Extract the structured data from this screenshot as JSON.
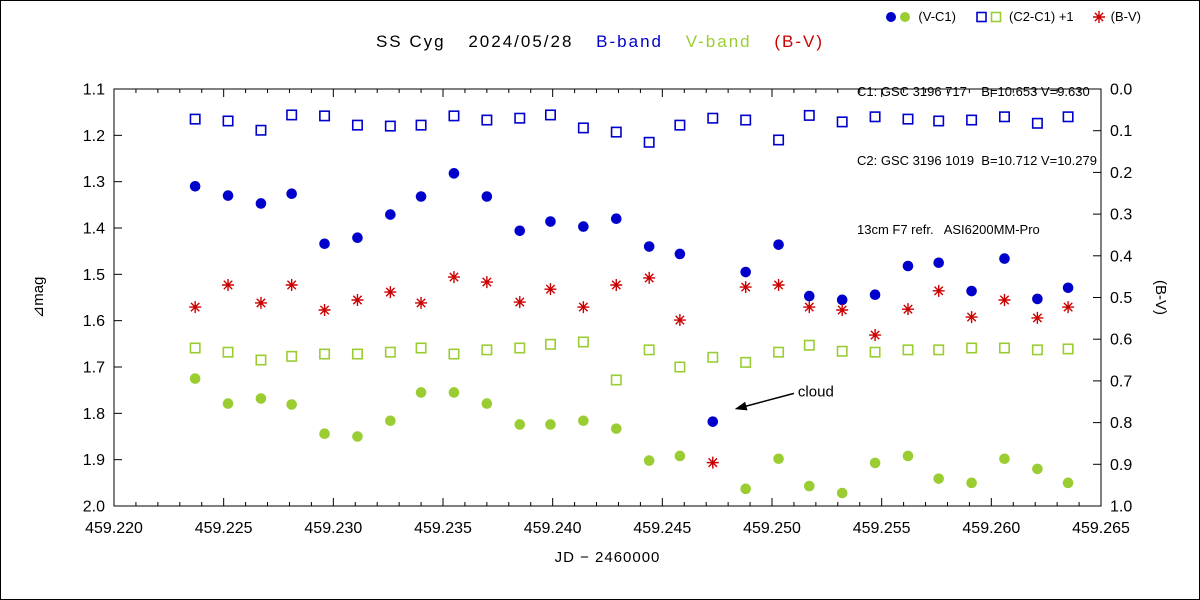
{
  "header": {
    "star": "SS Cyg",
    "date": "2024/05/28",
    "b_band_label": "B-band",
    "v_band_label": "V-band",
    "bv_label": "(B-V)",
    "info_lines": [
      "C1: GSC 3196 717    B=10.653 V=9.630",
      "C2: GSC 3196 1019  B=10.712 V=10.279",
      "13cm F7 refr.   ASI6200MM-Pro"
    ]
  },
  "legend": {
    "vc1_label": "(V-C1)",
    "c2c1_label": "(C2-C1) +1",
    "bv_label": "(B-V)"
  },
  "colors": {
    "b": "#0000cc",
    "v": "#9acd32",
    "bv": "#cc0000",
    "axis": "#000000"
  },
  "chart_data": {
    "type": "scatter",
    "title": "SS Cyg 2024/05/28 B-band V-band (B-V)",
    "xlabel": "JD − 2460000",
    "ylabel_left": "⊿mag",
    "ylabel_right": "(B-V)",
    "grid": false,
    "x_axis": {
      "min": 459.22,
      "max": 459.265,
      "major_step": 0.005,
      "minor_step": 0.001,
      "tick_labels": [
        "459.220",
        "459.225",
        "459.230",
        "459.235",
        "459.240",
        "459.245",
        "459.250",
        "459.255",
        "459.260",
        "459.265"
      ]
    },
    "y_axis_left": {
      "min": 1.1,
      "max": 2.0,
      "major_step": 0.1,
      "increases_downward": true,
      "tick_labels": [
        "1.1",
        "1.2",
        "1.3",
        "1.4",
        "1.5",
        "1.6",
        "1.7",
        "1.8",
        "1.9",
        "2.0"
      ]
    },
    "y_axis_right": {
      "min": 0.0,
      "max": 1.0,
      "major_step": 0.1,
      "color": "#cc0000",
      "tick_labels": [
        "0.0",
        "0.1",
        "0.2",
        "0.3",
        "0.4",
        "0.5",
        "0.6",
        "0.7",
        "0.8",
        "0.9",
        "1.0"
      ]
    },
    "x": [
      459.2237,
      459.2252,
      459.2267,
      459.2281,
      459.2296,
      459.2311,
      459.2326,
      459.234,
      459.2355,
      459.237,
      459.2385,
      459.2399,
      459.2414,
      459.2429,
      459.2444,
      459.2458,
      459.2473,
      459.2488,
      459.2503,
      459.2517,
      459.2532,
      459.2547,
      459.2562,
      459.2576,
      459.2591,
      459.2606,
      459.2621,
      459.2635
    ],
    "series": [
      {
        "name": "B-band (V-C1)",
        "marker": "filled-circle",
        "color": "#0000cc",
        "axis": "left",
        "values": [
          1.31,
          1.33,
          1.347,
          1.326,
          1.434,
          1.421,
          1.371,
          1.332,
          1.282,
          1.332,
          1.406,
          1.386,
          1.397,
          1.38,
          1.44,
          1.456,
          1.818,
          1.495,
          1.436,
          1.547,
          1.555,
          1.544,
          1.482,
          1.475,
          1.536,
          1.466,
          1.553,
          1.529
        ]
      },
      {
        "name": "B-band (C2-C1)+1",
        "marker": "open-square",
        "color": "#0000cc",
        "axis": "left",
        "values": [
          1.165,
          1.169,
          1.189,
          1.156,
          1.158,
          1.178,
          1.18,
          1.178,
          1.158,
          1.167,
          1.163,
          1.156,
          1.184,
          1.193,
          1.215,
          1.178,
          1.163,
          1.167,
          1.21,
          1.157,
          1.171,
          1.16,
          1.165,
          1.169,
          1.167,
          1.16,
          1.174,
          1.16
        ]
      },
      {
        "name": "V-band (C2-C1)+1",
        "marker": "open-square",
        "color": "#9acd32",
        "axis": "left",
        "values": [
          1.659,
          1.668,
          1.685,
          1.677,
          1.672,
          1.672,
          1.668,
          1.659,
          1.672,
          1.663,
          1.659,
          1.651,
          1.646,
          1.728,
          1.663,
          1.7,
          1.679,
          1.69,
          1.668,
          1.653,
          1.666,
          1.668,
          1.663,
          1.663,
          1.659,
          1.659,
          1.663,
          1.661
        ]
      },
      {
        "name": "V-band (V-C1)",
        "marker": "filled-circle",
        "color": "#9acd32",
        "axis": "left",
        "values": [
          1.725,
          1.779,
          1.768,
          1.781,
          1.844,
          1.85,
          1.816,
          1.755,
          1.755,
          1.779,
          1.824,
          1.824,
          1.816,
          1.833,
          1.902,
          1.892,
          null,
          1.963,
          1.898,
          1.957,
          1.972,
          1.907,
          1.892,
          1.941,
          1.95,
          1.898,
          1.92,
          1.95
        ]
      },
      {
        "name": "B-V",
        "marker": "asterisk",
        "color": "#cc0000",
        "axis": "right",
        "values": [
          0.523,
          0.47,
          0.513,
          0.47,
          0.53,
          0.506,
          0.487,
          0.513,
          0.451,
          0.463,
          0.511,
          0.48,
          0.523,
          0.47,
          0.453,
          0.554,
          0.896,
          0.475,
          0.47,
          0.523,
          0.53,
          0.59,
          0.528,
          0.484,
          0.547,
          0.506,
          0.549,
          0.523
        ]
      }
    ],
    "annotation": {
      "text": "cloud",
      "tail": [
        459.251,
        1.757
      ],
      "tip": [
        459.2483,
        1.791
      ]
    }
  }
}
